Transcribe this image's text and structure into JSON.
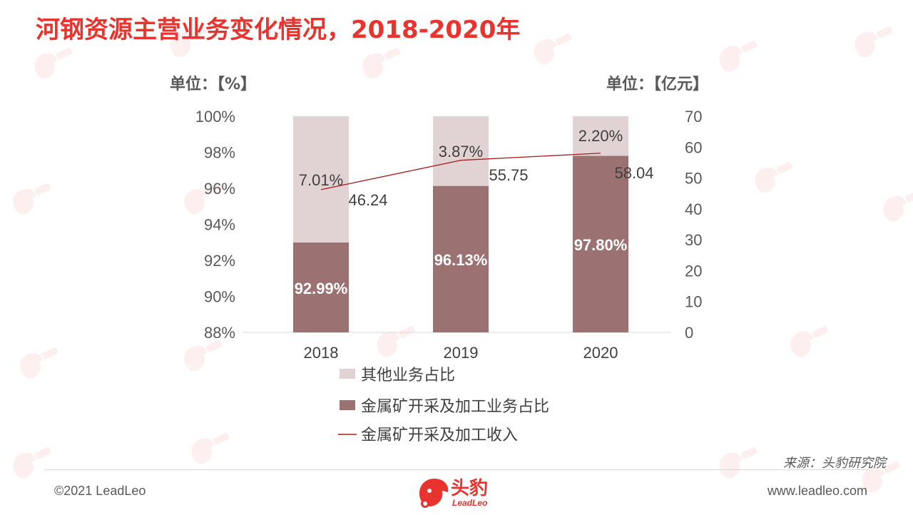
{
  "title": "河钢资源主营业务变化情况，2018-2020年",
  "unit_left": "单位：【%】",
  "unit_right": "单位：【亿元】",
  "source": "来源：头豹研究院",
  "footer": {
    "copyright": "©2021 LeadLeo",
    "website": "www.leadleo.com"
  },
  "logo": {
    "name": "头豹",
    "sub": "LeadLeo"
  },
  "colors": {
    "accent": "#e8332e",
    "other_share": "#e1d3d3",
    "metal_share": "#9b7171",
    "revenue_line": "#a31e1e"
  },
  "chart_data": {
    "type": "bar",
    "categories": [
      "2018",
      "2019",
      "2020"
    ],
    "series": [
      {
        "name": "其他业务占比",
        "values": [
          7.01,
          3.87,
          2.2
        ],
        "labels": [
          "7.01%",
          "3.87%",
          "2.20%"
        ]
      },
      {
        "name": "金属矿开采及加工业务占比",
        "values": [
          92.99,
          96.13,
          97.8
        ],
        "labels": [
          "92.99%",
          "96.13%",
          "97.80%"
        ]
      },
      {
        "name": "金属矿开采及加工收入",
        "type": "line",
        "axis": "right",
        "values": [
          46.24,
          55.75,
          58.04
        ],
        "labels": [
          "46.24",
          "55.75",
          "58.04"
        ]
      }
    ],
    "left_axis": {
      "min": 88,
      "max": 100,
      "ticks": [
        "88%",
        "90%",
        "92%",
        "94%",
        "96%",
        "98%",
        "100%"
      ]
    },
    "right_axis": {
      "min": 0,
      "max": 70,
      "ticks": [
        "0",
        "10",
        "20",
        "30",
        "40",
        "50",
        "60",
        "70"
      ]
    },
    "stacked": true,
    "grid": false,
    "legend_position": "bottom"
  }
}
